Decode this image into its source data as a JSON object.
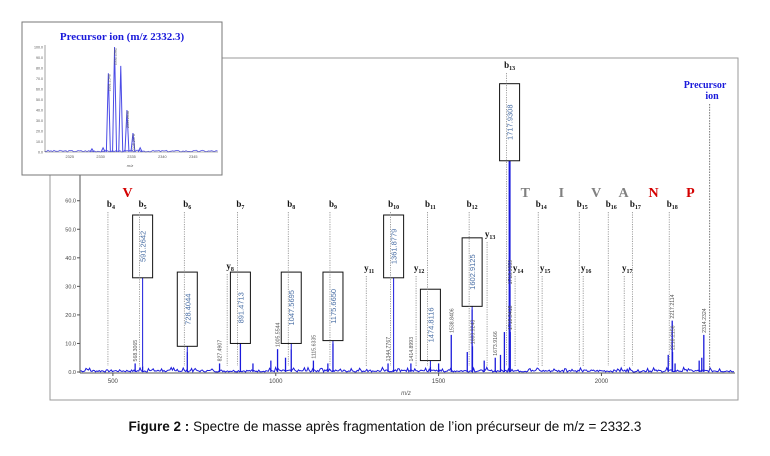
{
  "chart_data": [
    {
      "type": "line",
      "title": "",
      "xlabel": "m/z",
      "ylabel": "",
      "xlim": [
        399,
        2410
      ],
      "ylim": [
        0,
        110
      ],
      "xticks": [
        500,
        1000,
        1500,
        2000
      ],
      "yticks": [
        "0.0",
        "10.0",
        "20.0",
        "30.0",
        "40.0",
        "50.0",
        "60.0",
        "70.0"
      ],
      "grid": false,
      "line_color": "#1a1adb",
      "peaks": [
        {
          "mz": 568.3065,
          "intensity": 3,
          "label": "568.3065",
          "boxed": false
        },
        {
          "mz": 591.2642,
          "intensity": 2,
          "label": "591.2642",
          "boxed": true
        },
        {
          "mz": 728.4044,
          "intensity": 7,
          "label": "728.4044",
          "boxed": true
        },
        {
          "mz": 827.4907,
          "intensity": 3,
          "label": "827.4907",
          "boxed": false
        },
        {
          "mz": 891.4713,
          "intensity": 10,
          "label": "891.4713",
          "boxed": true
        },
        {
          "mz": 1005.5544,
          "intensity": 8,
          "label": "1005.5544",
          "boxed": false
        },
        {
          "mz": 1047.5695,
          "intensity": 8,
          "label": "1047.5695",
          "boxed": true
        },
        {
          "mz": 1115.6335,
          "intensity": 4,
          "label": "1115.6335",
          "boxed": false
        },
        {
          "mz": 1175.665,
          "intensity": 10,
          "label": "1175.6650",
          "boxed": true
        },
        {
          "mz": 1344.7767,
          "intensity": 3,
          "label": "1344.7767",
          "boxed": false
        },
        {
          "mz": 1361.8779,
          "intensity": 1,
          "label": "1361.8779",
          "boxed": true
        },
        {
          "mz": 1414.8993,
          "intensity": 3,
          "label": "1414.8993",
          "boxed": false
        },
        {
          "mz": 1474.8116,
          "intensity": 2,
          "label": "1474.8116",
          "boxed": true
        },
        {
          "mz": 1538.8406,
          "intensity": 13,
          "label": "1538.8406",
          "boxed": false
        },
        {
          "mz": 1602.9125,
          "intensity": 22,
          "label": "1602.9125",
          "boxed": true
        },
        {
          "mz": 1603.9243,
          "intensity": 9,
          "label": "1603.9243",
          "boxed": false
        },
        {
          "mz": 1673.9166,
          "intensity": 5,
          "label": "1673.9166",
          "boxed": false
        },
        {
          "mz": 1717.9308,
          "intensity": 100,
          "label": "1717.9308",
          "boxed": true
        },
        {
          "mz": 1718.9359,
          "intensity": 30,
          "label": "1718.9359",
          "boxed": false
        },
        {
          "mz": 1719.9418,
          "intensity": 14,
          "label": "1719.9418",
          "boxed": false
        },
        {
          "mz": 2217.2114,
          "intensity": 18,
          "label": "2217.2114",
          "boxed": false
        },
        {
          "mz": 2218.2156,
          "intensity": 7,
          "label": "2218.2156",
          "boxed": false
        },
        {
          "mz": 2314.2324,
          "intensity": 13,
          "label": "2314.2324",
          "boxed": false
        },
        {
          "mz": 930,
          "intensity": 3,
          "label": null,
          "boxed": false
        },
        {
          "mz": 985,
          "intensity": 4,
          "label": null,
          "boxed": false
        },
        {
          "mz": 1030,
          "intensity": 5,
          "label": null,
          "boxed": false
        },
        {
          "mz": 1160,
          "intensity": 3,
          "label": null,
          "boxed": false
        },
        {
          "mz": 1500,
          "intensity": 3,
          "label": null,
          "boxed": false
        },
        {
          "mz": 1588,
          "intensity": 7,
          "label": null,
          "boxed": false
        },
        {
          "mz": 1640,
          "intensity": 4,
          "label": null,
          "boxed": false
        },
        {
          "mz": 1690,
          "intensity": 6,
          "label": null,
          "boxed": false
        },
        {
          "mz": 1702,
          "intensity": 14,
          "label": null,
          "boxed": false
        },
        {
          "mz": 2205,
          "intensity": 6,
          "label": null,
          "boxed": false
        },
        {
          "mz": 2226,
          "intensity": 3,
          "label": null,
          "boxed": false
        },
        {
          "mz": 2300,
          "intensity": 4,
          "label": null,
          "boxed": false
        },
        {
          "mz": 2308,
          "intensity": 5,
          "label": null,
          "boxed": false
        }
      ],
      "b_ions": [
        {
          "ion": "b",
          "sub": "4",
          "mz": 494
        },
        {
          "ion": "b",
          "sub": "5",
          "mz": 591.2642
        },
        {
          "ion": "b",
          "sub": "6",
          "mz": 728.4044
        },
        {
          "ion": "b",
          "sub": "7",
          "mz": 891.4713
        },
        {
          "ion": "b",
          "sub": "8",
          "mz": 1047.5695
        },
        {
          "ion": "b",
          "sub": "9",
          "mz": 1175.665
        },
        {
          "ion": "b",
          "sub": "10",
          "mz": 1361.8779
        },
        {
          "ion": "b",
          "sub": "11",
          "mz": 1474.8116
        },
        {
          "ion": "b",
          "sub": "12",
          "mz": 1602.9125
        },
        {
          "ion": "b",
          "sub": "13",
          "mz": 1717.9308
        },
        {
          "ion": "b",
          "sub": "14",
          "mz": 1815
        },
        {
          "ion": "b",
          "sub": "15",
          "mz": 1941
        },
        {
          "ion": "b",
          "sub": "16",
          "mz": 2030
        },
        {
          "ion": "b",
          "sub": "17",
          "mz": 2104
        },
        {
          "ion": "b",
          "sub": "18",
          "mz": 2217.2114
        }
      ],
      "y_ions": [
        {
          "ion": "y",
          "sub": "8",
          "mz": 860
        },
        {
          "ion": "y",
          "sub": "11",
          "mz": 1287
        },
        {
          "ion": "y",
          "sub": "12",
          "mz": 1440
        },
        {
          "ion": "y",
          "sub": "13",
          "mz": 1658
        },
        {
          "ion": "y",
          "sub": "14",
          "mz": 1744
        },
        {
          "ion": "y",
          "sub": "15",
          "mz": 1827
        },
        {
          "ion": "y",
          "sub": "16",
          "mz": 1953
        },
        {
          "ion": "y",
          "sub": "17",
          "mz": 2079
        }
      ],
      "precursor": {
        "line1": "Precursor",
        "line2": "ion",
        "mz": 2332.3,
        "color": "#1a1adb"
      },
      "sequence": [
        {
          "letter": "V",
          "mz": 545,
          "color": "#d40000"
        },
        {
          "letter": "T",
          "mz": 1766,
          "color": "#808080"
        },
        {
          "letter": "I",
          "mz": 1877,
          "color": "#808080"
        },
        {
          "letter": "V",
          "mz": 1984,
          "color": "#808080"
        },
        {
          "letter": "A",
          "mz": 2068,
          "color": "#808080"
        },
        {
          "letter": "N",
          "mz": 2160,
          "color": "#d40000"
        },
        {
          "letter": "P",
          "mz": 2273,
          "color": "#d40000"
        }
      ]
    },
    {
      "type": "line",
      "title": "Precursor ion (m/z 2332.3)",
      "title_prefix": "Precursor ion (",
      "title_mz": "m/z",
      "title_suffix": " 2332.3)",
      "title_color": "#1a1adb",
      "xlabel": "m/z",
      "xlim": [
        2321,
        2349
      ],
      "ylim": [
        0,
        100
      ],
      "xticks": [
        2325,
        2330,
        2335,
        2340,
        2345
      ],
      "yticks": [
        "0.0",
        "10.0",
        "20.0",
        "30.0",
        "40.0",
        "50.0",
        "60.0",
        "70.0",
        "80.0",
        "90.0",
        "100.0"
      ],
      "peaks": [
        {
          "mz": 2331.2548,
          "intensity": 75,
          "label": "2331.2548"
        },
        {
          "mz": 2332.2582,
          "intensity": 100,
          "label": "2332.2582"
        },
        {
          "mz": 2333.2612,
          "intensity": 82,
          "label": null
        },
        {
          "mz": 2334.2638,
          "intensity": 40,
          "label": "2334.2638"
        },
        {
          "mz": 2335.237,
          "intensity": 18,
          "label": "2335.2370"
        },
        {
          "mz": 2330.4,
          "intensity": 4,
          "label": null
        },
        {
          "mz": 2336.4,
          "intensity": 4,
          "label": null
        },
        {
          "mz": 2328.6,
          "intensity": 3,
          "label": null
        }
      ]
    }
  ],
  "caption": {
    "label": "Figure 2 :",
    "text": " Spectre de masse après fragmentation de l’ion précurseur de m/z = 2332.3"
  }
}
